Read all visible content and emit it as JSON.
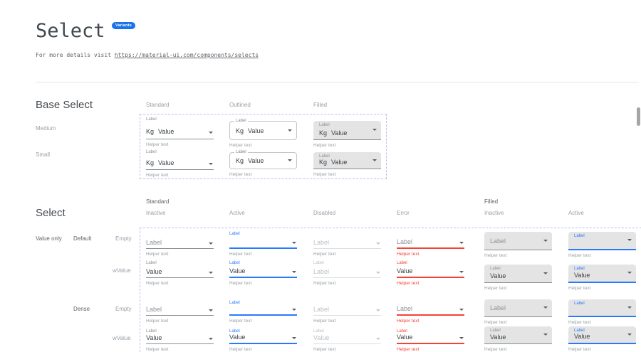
{
  "header": {
    "title": "Select",
    "badge": "Variants",
    "intro": "For more details visit ",
    "link": "https://material-ui.com/components/selects"
  },
  "colors": {
    "active_blue": "#2979ff",
    "error_red": "#f44336",
    "badge_blue": "#1a73e8",
    "filled_bg": "#e4e4e4",
    "dashed_frame": "#b9bef2"
  },
  "base_select": {
    "heading": "Base Select",
    "column_headers": [
      "Standard",
      "Outlined",
      "Filled"
    ],
    "row_headers": [
      "Medium",
      "Small"
    ],
    "cells": [
      {
        "variant": "standard",
        "size": "medium",
        "label": "Label",
        "prefix": "Kg",
        "value": "Value",
        "helper": "Helper text"
      },
      {
        "variant": "outlined",
        "size": "medium",
        "label": "Label",
        "prefix": "Kg",
        "value": "Value",
        "helper": "Helper text"
      },
      {
        "variant": "filled",
        "size": "medium",
        "label": "Label",
        "prefix": "Kg",
        "value": "Value",
        "helper": "Helper text"
      },
      {
        "variant": "standard",
        "size": "small",
        "label": "Label",
        "prefix": "Kg",
        "value": "Value",
        "helper": "Helper text"
      },
      {
        "variant": "outlined",
        "size": "small",
        "label": "Label",
        "prefix": "Kg",
        "value": "Value",
        "helper": "Helper text"
      },
      {
        "variant": "filled",
        "size": "small",
        "label": "Label",
        "prefix": "Kg",
        "value": "Value",
        "helper": "Helper text"
      }
    ]
  },
  "select_grid": {
    "heading": "Select",
    "group_headers": [
      "Standard",
      "Filled"
    ],
    "column_headers": [
      "Inactive",
      "Active",
      "Disabled",
      "Error",
      "Inactive",
      "Active"
    ],
    "row_group": "Value only",
    "row_density": [
      "Default",
      "Dense"
    ],
    "row_states": [
      "Empty",
      "wValue"
    ],
    "cells": [
      {
        "variant": "standard",
        "state": "inactive",
        "dense": false,
        "label": null,
        "placeholder": "Label",
        "value": null,
        "helper": "Helper text"
      },
      {
        "variant": "standard",
        "state": "active",
        "dense": false,
        "label": "Label",
        "placeholder": null,
        "value": null,
        "helper": "Helper text"
      },
      {
        "variant": "standard",
        "state": "disabled",
        "dense": false,
        "label": null,
        "placeholder": "Label",
        "value": null,
        "helper": "Helper text"
      },
      {
        "variant": "standard",
        "state": "error",
        "dense": false,
        "label": null,
        "placeholder": "Label",
        "value": null,
        "helper": "Helper text"
      },
      {
        "variant": "filled",
        "state": "inactive",
        "dense": false,
        "label": null,
        "placeholder": "Label",
        "value": null,
        "helper": "Helper text"
      },
      {
        "variant": "filled",
        "state": "active",
        "dense": false,
        "label": "Label",
        "placeholder": null,
        "value": null,
        "helper": "Helper text"
      },
      {
        "variant": "standard",
        "state": "inactive",
        "dense": false,
        "label": "Label",
        "placeholder": null,
        "value": "Value",
        "helper": "Helper text"
      },
      {
        "variant": "standard",
        "state": "active",
        "dense": false,
        "label": "Label",
        "placeholder": null,
        "value": "Value",
        "helper": "Helper text"
      },
      {
        "variant": "standard",
        "state": "disabled",
        "dense": false,
        "label": "Label",
        "placeholder": null,
        "value": "Label",
        "helper": "Helper text"
      },
      {
        "variant": "standard",
        "state": "error",
        "dense": false,
        "label": "Label",
        "placeholder": null,
        "value": "Value",
        "helper": "Helper text"
      },
      {
        "variant": "filled",
        "state": "inactive",
        "dense": false,
        "label": "Label",
        "placeholder": null,
        "value": "Value",
        "helper": "Helper text"
      },
      {
        "variant": "filled",
        "state": "active",
        "dense": false,
        "label": "Label",
        "placeholder": null,
        "value": "Value",
        "helper": "Helper text"
      },
      {
        "variant": "standard",
        "state": "inactive",
        "dense": true,
        "label": null,
        "placeholder": "Label",
        "value": null,
        "helper": "Helper text"
      },
      {
        "variant": "standard",
        "state": "active",
        "dense": true,
        "label": "Label",
        "placeholder": null,
        "value": null,
        "helper": "Helper text"
      },
      {
        "variant": "standard",
        "state": "disabled",
        "dense": true,
        "label": null,
        "placeholder": "Label",
        "value": null,
        "helper": "Helper text"
      },
      {
        "variant": "standard",
        "state": "error",
        "dense": true,
        "label": null,
        "placeholder": "Label",
        "value": null,
        "helper": "Helper text"
      },
      {
        "variant": "filled",
        "state": "inactive",
        "dense": true,
        "label": null,
        "placeholder": "Label",
        "value": null,
        "helper": "Helper text"
      },
      {
        "variant": "filled",
        "state": "active",
        "dense": true,
        "label": "Label",
        "placeholder": null,
        "value": null,
        "helper": "Helper text"
      },
      {
        "variant": "standard",
        "state": "inactive",
        "dense": true,
        "label": "Label",
        "placeholder": null,
        "value": "Value",
        "helper": "Helper text"
      },
      {
        "variant": "standard",
        "state": "active",
        "dense": true,
        "label": "Label",
        "placeholder": null,
        "value": "Value",
        "helper": "Helper text"
      },
      {
        "variant": "standard",
        "state": "disabled",
        "dense": true,
        "label": "Label",
        "placeholder": null,
        "value": "Value",
        "helper": "Helper text"
      },
      {
        "variant": "standard",
        "state": "error",
        "dense": true,
        "label": "Label",
        "placeholder": null,
        "value": "Value",
        "helper": "Helper text"
      },
      {
        "variant": "filled",
        "state": "inactive",
        "dense": true,
        "label": "Label",
        "placeholder": null,
        "value": "Value",
        "helper": "Helper text"
      },
      {
        "variant": "filled",
        "state": "active",
        "dense": true,
        "label": "Label",
        "placeholder": null,
        "value": "Value",
        "helper": "Helper text"
      }
    ]
  }
}
